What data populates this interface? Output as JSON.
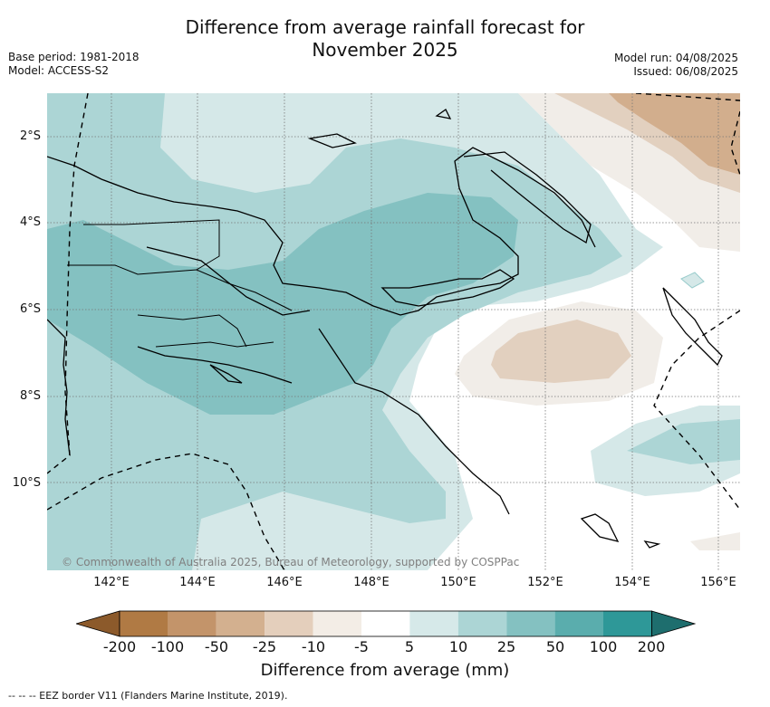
{
  "header": {
    "title_line1": "Difference from average rainfall forecast for",
    "title_line2": "November 2025",
    "base_period": "Base period: 1981-2018",
    "model": "Model: ACCESS-S2",
    "model_run": "Model run: 04/08/2025",
    "issued": "Issued: 06/08/2025"
  },
  "map": {
    "lat_labels": [
      "2°S",
      "4°S",
      "6°S",
      "8°S",
      "10°S"
    ],
    "lon_labels": [
      "142°E",
      "144°E",
      "146°E",
      "148°E",
      "150°E",
      "152°E",
      "154°E",
      "156°E"
    ],
    "copyright": "© Commonwealth of Australia 2025, Bureau of Meteorology, supported by COSPPac",
    "contour_colors": {
      "dry_-25": "#e2d0bf",
      "dry_-10": "#f1ede8",
      "wet_5": "#d5e8e8",
      "wet_10": "#acd5d5",
      "wet_25": "#84c1c1",
      "dry_strong": "#d2ae8d"
    }
  },
  "colorbar": {
    "title": "Difference from average (mm)",
    "ticks": [
      "-200",
      "-100",
      "-50",
      "-25",
      "-10",
      "-5",
      "5",
      "10",
      "25",
      "50",
      "100",
      "200"
    ],
    "colors": [
      "#8c5a2b",
      "#b07a44",
      "#c3946a",
      "#d3b08f",
      "#e4cfbc",
      "#f3ede6",
      "#ffffff",
      "#d6e9e9",
      "#acd5d5",
      "#84c1c1",
      "#5aadad",
      "#2e9898",
      "#1e6e6e"
    ]
  },
  "footer": {
    "legend_line": "--  --  -- EEZ border V11 (Flanders Marine Institute, 2019)."
  }
}
